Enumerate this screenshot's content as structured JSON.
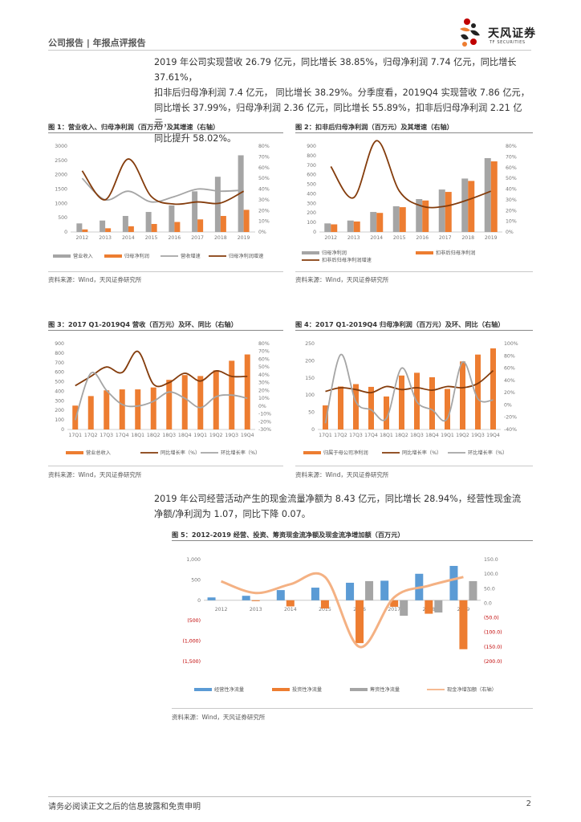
{
  "header": {
    "left": "公司报告 | 年报点评报告",
    "brand": "天风证券",
    "brand_en": "TF SECURITIES"
  },
  "para1": [
    "2019 年公司实现营收 26.79 亿元，同比增长 38.85%，归母净利润 7.74 亿元，同比增长 37.61%，",
    "扣非后归母净利润 7.4 亿元， 同比增长 38.29%。分季度看，2019Q4 实现营收 7.86 亿元，",
    "同比增长 37.99%，归母净利润 2.36 亿元，同比增长 55.89%，扣非后归母净利润 2.21 亿元，",
    "同比提升 58.02%。"
  ],
  "para2": [
    "2019 年公司经营活动产生的现金流量净额为 8.43 亿元，同比增长 28.94%，经营性现金流",
    "净额/净利润为 1.07，同比下降 0.07。"
  ],
  "source": "资料来源：Wind，天风证券研究所",
  "footer": {
    "disclaimer": "请务必阅读正文之后的信息披露和免责申明",
    "page": "2"
  },
  "colors": {
    "orange": "#ed7d31",
    "gray": "#a5a5a5",
    "brown": "#843c0c",
    "light_orange": "#f4b183",
    "blue": "#5b9bd5"
  },
  "chart_data": [
    {
      "id": "fig1",
      "type": "bar",
      "title": "图 1：营业收入、归母净利润（百万元）及其增速（右轴）",
      "categories": [
        "2012",
        "2013",
        "2014",
        "2015",
        "2016",
        "2017",
        "2018",
        "2019"
      ],
      "ylim": [
        0,
        3000
      ],
      "yticks": [
        "3000",
        "2500",
        "2000",
        "1500",
        "1000",
        "500",
        "0"
      ],
      "y2lim": [
        0,
        80
      ],
      "y2ticks": [
        "80%",
        "70%",
        "60%",
        "50%",
        "40%",
        "30%",
        "20%",
        "10%",
        "0%"
      ],
      "bars": [
        {
          "name": "营业收入",
          "values": [
            300,
            400,
            560,
            700,
            930,
            1420,
            1930,
            2679
          ]
        },
        {
          "name": "归母净利润",
          "values": [
            90,
            130,
            200,
            280,
            350,
            440,
            560,
            774
          ]
        }
      ],
      "lines": [
        {
          "name": "营收增速",
          "values": [
            50,
            30,
            38,
            28,
            33,
            40,
            38,
            39
          ]
        },
        {
          "name": "归母净利润增速",
          "values": [
            57,
            30,
            68,
            33,
            26,
            28,
            27,
            38
          ]
        }
      ]
    },
    {
      "id": "fig2",
      "type": "bar",
      "title": "图 2：扣非后归母净利润（百万元）及其增速（右轴）",
      "categories": [
        "2012",
        "2013",
        "2014",
        "2015",
        "2016",
        "2017",
        "2018",
        "2019"
      ],
      "ylim": [
        0,
        900
      ],
      "yticks": [
        "900",
        "800",
        "700",
        "600",
        "500",
        "400",
        "300",
        "200",
        "100",
        "0"
      ],
      "y2lim": [
        0,
        80
      ],
      "y2ticks": [
        "80%",
        "70%",
        "60%",
        "50%",
        "40%",
        "30%",
        "20%",
        "10%",
        "0%"
      ],
      "bars": [
        {
          "name": "归母净利润",
          "values": [
            90,
            120,
            210,
            270,
            345,
            445,
            560,
            774
          ]
        },
        {
          "name": "扣非后归母净利润",
          "values": [
            80,
            110,
            200,
            260,
            330,
            420,
            535,
            740
          ]
        }
      ],
      "lines": [
        {
          "name": "扣非后归母净利润增速",
          "values": [
            61,
            32,
            85,
            38,
            24,
            24,
            30,
            38
          ]
        }
      ]
    },
    {
      "id": "fig3",
      "type": "bar",
      "title": "图 3：2017 Q1-2019Q4 营收（百万元）及环、同比（右轴）",
      "categories": [
        "17Q1",
        "17Q2",
        "17Q3",
        "17Q4",
        "18Q1",
        "18Q2",
        "18Q3",
        "18Q4",
        "19Q1",
        "19Q2",
        "19Q3",
        "19Q4"
      ],
      "ylim": [
        0,
        900
      ],
      "yticks": [
        "900",
        "800",
        "700",
        "600",
        "500",
        "400",
        "300",
        "200",
        "100",
        "0"
      ],
      "y2lim": [
        -30,
        80
      ],
      "y2ticks": [
        "80%",
        "70%",
        "60%",
        "50%",
        "40%",
        "30%",
        "20%",
        "10%",
        "0%",
        "-10%",
        "-20%",
        "-30%"
      ],
      "bars": [
        {
          "name": "营业总收入",
          "values": [
            250,
            350,
            410,
            420,
            420,
            440,
            520,
            570,
            560,
            620,
            720,
            786
          ]
        }
      ],
      "lines": [
        {
          "name": "同比增长率（%）",
          "values": [
            26,
            38,
            50,
            43,
            70,
            28,
            30,
            42,
            32,
            45,
            38,
            38
          ]
        },
        {
          "name": "环比增长率（%）",
          "values": [
            -18,
            42,
            20,
            2,
            0,
            6,
            18,
            10,
            -2,
            12,
            14,
            10
          ]
        }
      ]
    },
    {
      "id": "fig4",
      "type": "bar",
      "title": "图 4：2017 Q1-2019Q4 归母净利润（百万元）及环、同比（右轴）",
      "categories": [
        "17Q1",
        "17Q2",
        "17Q3",
        "17Q4",
        "18Q1",
        "18Q2",
        "18Q3",
        "18Q4",
        "19Q1",
        "19Q2",
        "19Q3",
        "19Q4"
      ],
      "ylim": [
        0,
        250
      ],
      "yticks": [
        "250",
        "200",
        "150",
        "100",
        "50",
        "0"
      ],
      "y2lim": [
        -40,
        100
      ],
      "y2ticks": [
        "100%",
        "80%",
        "60%",
        "40%",
        "20%",
        "0%",
        "-20%",
        "-40%"
      ],
      "bars": [
        {
          "name": "归属于母公司净利润",
          "values": [
            70,
            125,
            132,
            124,
            96,
            157,
            165,
            152,
            118,
            198,
            218,
            236
          ]
        }
      ],
      "lines": [
        {
          "name": "同比增长率（%）",
          "values": [
            22,
            28,
            25,
            20,
            30,
            25,
            28,
            24,
            30,
            28,
            35,
            56
          ]
        },
        {
          "name": "环比增长率（%）",
          "values": [
            -30,
            82,
            5,
            -8,
            -22,
            60,
            5,
            -8,
            -22,
            70,
            10,
            8
          ]
        }
      ]
    },
    {
      "id": "fig5",
      "type": "bar",
      "title": "图 5：2012-2019 经营、投资、筹资现金流净额及现金流净增加额（百万元）",
      "categories": [
        "2012",
        "2013",
        "2014",
        "2015",
        "2016",
        "2017",
        "2018",
        "2019"
      ],
      "ylim": [
        -1500,
        1000
      ],
      "yticks": [
        "1,000",
        "500",
        "0",
        "(500)",
        "(1,000)",
        "(1,500)"
      ],
      "y2lim": [
        -200,
        150
      ],
      "y2ticks": [
        "150.0",
        "100.0",
        "50.0",
        "0.0",
        "(50.0)",
        "(100.0)",
        "(150.0)",
        "(200.0)"
      ],
      "bars": [
        {
          "name": "经营性净流量",
          "values": [
            70,
            110,
            250,
            310,
            430,
            480,
            650,
            843
          ]
        },
        {
          "name": "投资性净流量",
          "values": [
            0,
            -20,
            -150,
            -200,
            -1050,
            -160,
            -330,
            -1200
          ]
        },
        {
          "name": "筹资性净流量",
          "values": [
            0,
            0,
            0,
            0,
            470,
            -380,
            -300,
            470
          ]
        }
      ],
      "lines": [
        {
          "name": "现金净增加额（右轴）",
          "values": [
            75,
            35,
            65,
            90,
            -150,
            20,
            60,
            90
          ]
        }
      ]
    }
  ]
}
